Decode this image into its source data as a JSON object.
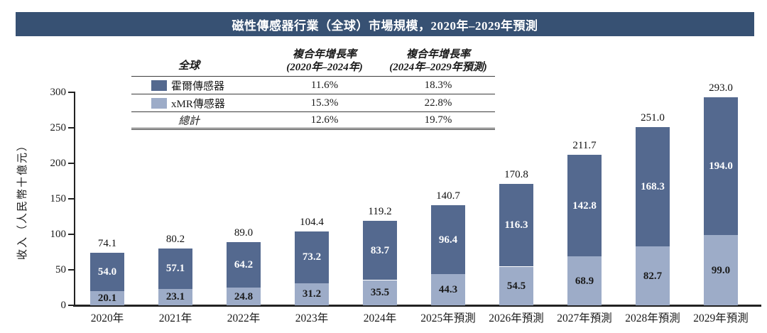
{
  "title": "磁性傳感器行業（全球）市場規模，2020年–2029年預測",
  "colors": {
    "title_bar_bg": "#375173",
    "title_text": "#ffffff",
    "hall_series": "#54698F",
    "xmr_series": "#9DACC8",
    "axis": "#222222"
  },
  "legend_table": {
    "header": {
      "col1": "全球",
      "col2_line1": "複合年增長率",
      "col2_line2": "(2020年–2024年)",
      "col3_line1": "複合年增長率",
      "col3_line2": "(2024年–2029年預測)"
    },
    "rows": [
      {
        "label": "霍爾傳感器",
        "swatch_color": "#54698F",
        "cagr_2020_2024": "11.6%",
        "cagr_2024_2029": "18.3%"
      },
      {
        "label": "xMR傳感器",
        "swatch_color": "#9DACC8",
        "cagr_2020_2024": "15.3%",
        "cagr_2024_2029": "22.8%"
      },
      {
        "label": "總計",
        "swatch_color": "",
        "cagr_2020_2024": "12.6%",
        "cagr_2024_2029": "19.7%"
      }
    ]
  },
  "chart_data": {
    "type": "bar",
    "stacked": true,
    "title": "磁性傳感器行業（全球）市場規模，2020年–2029年預測",
    "xlabel": "",
    "ylabel": "收入（人民幣十億元）",
    "ylim": [
      0,
      300
    ],
    "yticks": [
      0,
      50,
      100,
      150,
      200,
      250,
      300
    ],
    "grid": false,
    "legend_position": "top-left-table",
    "categories": [
      "2020年",
      "2021年",
      "2022年",
      "2023年",
      "2024年",
      "2025年預測",
      "2026年預測",
      "2027年預測",
      "2028年預測",
      "2029年預測"
    ],
    "series": [
      {
        "name": "xMR傳感器",
        "color": "#9DACC8",
        "label_color": "#1a1a1a",
        "values": [
          20.1,
          23.1,
          24.8,
          31.2,
          35.5,
          44.3,
          54.5,
          68.9,
          82.7,
          99.0
        ]
      },
      {
        "name": "霍爾傳感器",
        "color": "#54698F",
        "label_color": "#ffffff",
        "values": [
          54.0,
          57.1,
          64.2,
          73.2,
          83.7,
          96.4,
          116.3,
          142.8,
          168.3,
          194.0
        ]
      }
    ],
    "totals": [
      74.1,
      80.2,
      89.0,
      104.4,
      119.2,
      140.7,
      170.8,
      211.7,
      251.0,
      293.0
    ]
  }
}
